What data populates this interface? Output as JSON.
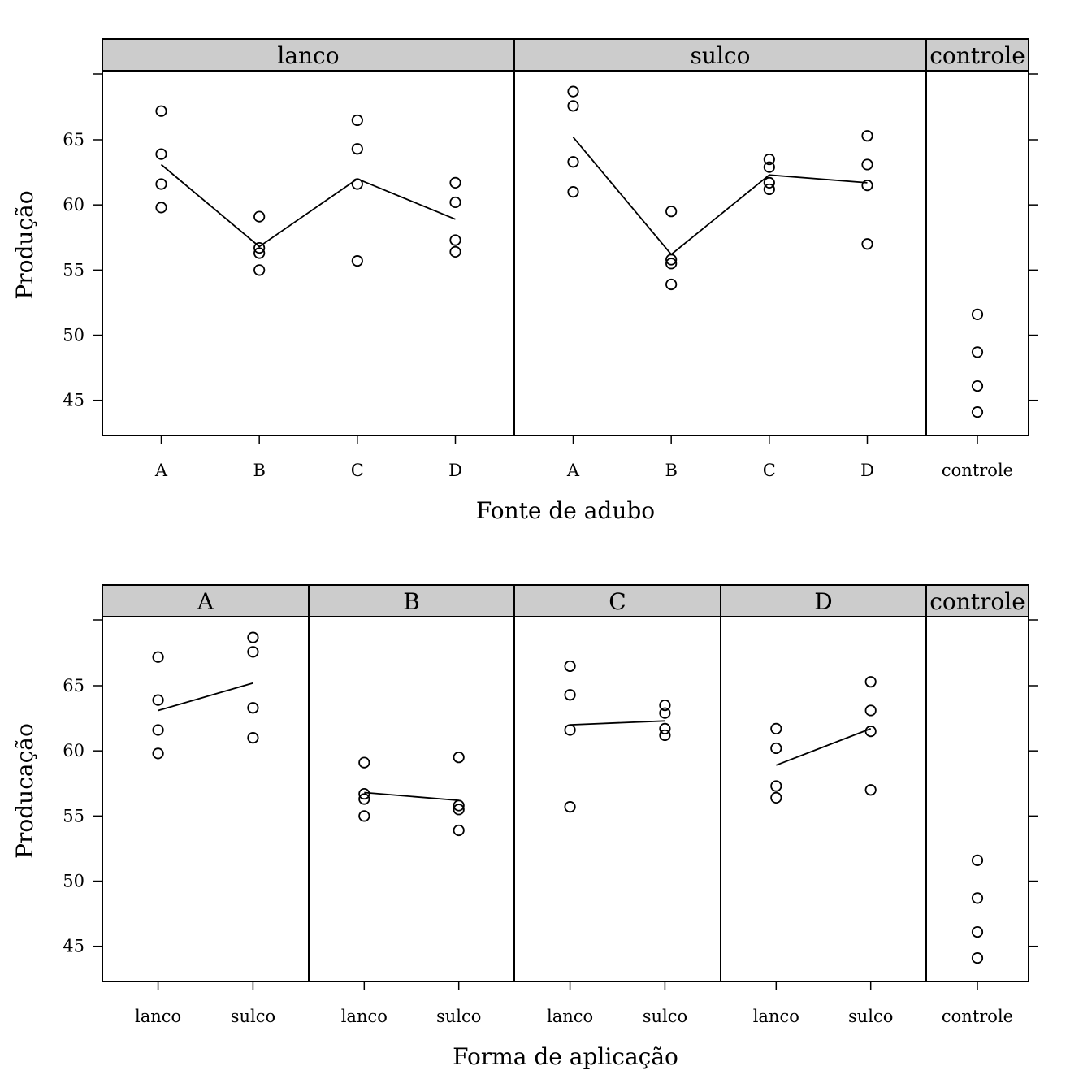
{
  "chart_data": [
    {
      "type": "scatter",
      "xlabel": "Fonte de adubo",
      "ylabel": "Produção",
      "ylim": [
        42.3,
        70.3
      ],
      "yticks": [
        45,
        50,
        55,
        60,
        65
      ],
      "line": "panel means",
      "panels": [
        {
          "label": "lanco",
          "categories": [
            "A",
            "B",
            "C",
            "D"
          ],
          "points": {
            "A": [
              67.2,
              63.9,
              61.6,
              59.8
            ],
            "B": [
              59.1,
              56.7,
              56.3,
              55.0
            ],
            "C": [
              66.5,
              64.3,
              61.6,
              55.7
            ],
            "D": [
              61.7,
              60.2,
              57.3,
              56.4
            ]
          },
          "means": [
            63.1,
            56.8,
            62.0,
            58.9
          ]
        },
        {
          "label": "sulco",
          "categories": [
            "A",
            "B",
            "C",
            "D"
          ],
          "points": {
            "A": [
              68.7,
              67.6,
              63.3,
              61.0
            ],
            "B": [
              59.5,
              55.8,
              55.5,
              53.9
            ],
            "C": [
              63.5,
              62.9,
              61.7,
              61.2
            ],
            "D": [
              65.3,
              63.1,
              61.5,
              57.0
            ]
          },
          "means": [
            65.2,
            56.2,
            62.3,
            61.7
          ]
        },
        {
          "label": "controle",
          "categories": [
            "controle"
          ],
          "points": {
            "controle": [
              51.6,
              48.7,
              46.1,
              44.1
            ]
          },
          "means": null
        }
      ]
    },
    {
      "type": "scatter",
      "xlabel": "Forma de aplicação",
      "ylabel": "Producação",
      "ylim": [
        42.3,
        70.3
      ],
      "yticks": [
        45,
        50,
        55,
        60,
        65
      ],
      "line": "panel means",
      "panels": [
        {
          "label": "A",
          "categories": [
            "lanco",
            "sulco"
          ],
          "points": {
            "lanco": [
              67.2,
              63.9,
              61.6,
              59.8
            ],
            "sulco": [
              68.7,
              67.6,
              63.3,
              61.0
            ]
          },
          "means": [
            63.1,
            65.2
          ]
        },
        {
          "label": "B",
          "categories": [
            "lanco",
            "sulco"
          ],
          "points": {
            "lanco": [
              59.1,
              56.7,
              56.3,
              55.0
            ],
            "sulco": [
              59.5,
              55.8,
              55.5,
              53.9
            ]
          },
          "means": [
            56.8,
            56.2
          ]
        },
        {
          "label": "C",
          "categories": [
            "lanco",
            "sulco"
          ],
          "points": {
            "lanco": [
              66.5,
              64.3,
              61.6,
              55.7
            ],
            "sulco": [
              63.5,
              62.9,
              61.7,
              61.2
            ]
          },
          "means": [
            62.0,
            62.3
          ]
        },
        {
          "label": "D",
          "categories": [
            "lanco",
            "sulco"
          ],
          "points": {
            "lanco": [
              61.7,
              60.2,
              57.3,
              56.4
            ],
            "sulco": [
              65.3,
              63.1,
              61.5,
              57.0
            ]
          },
          "means": [
            58.9,
            61.7
          ]
        },
        {
          "label": "controle",
          "categories": [
            "controle"
          ],
          "points": {
            "controle": [
              51.6,
              48.7,
              46.1,
              44.1
            ]
          },
          "means": null
        }
      ]
    }
  ]
}
